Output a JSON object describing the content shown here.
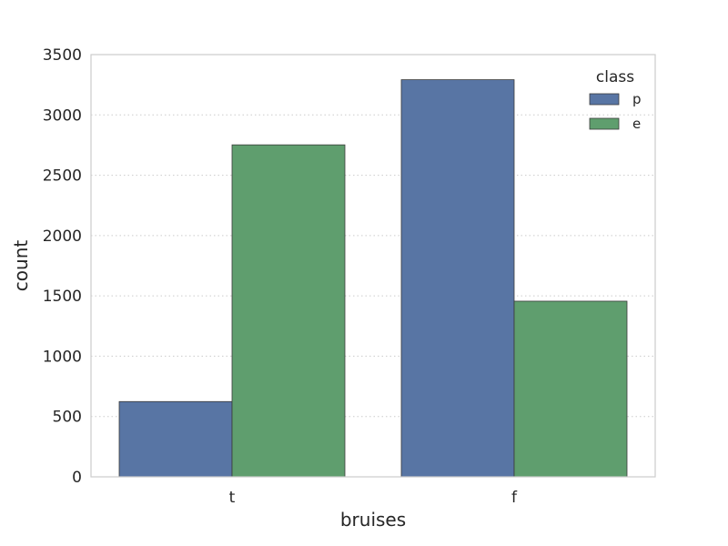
{
  "chart_data": {
    "type": "bar",
    "title": "",
    "xlabel": "bruises",
    "ylabel": "count",
    "categories": [
      "t",
      "f"
    ],
    "series": [
      {
        "name": "p",
        "color": "#5875a4",
        "values": [
          624,
          3292
        ]
      },
      {
        "name": "e",
        "color": "#5f9e6e",
        "values": [
          2752,
          1456
        ]
      }
    ],
    "ylim": [
      0,
      3500
    ],
    "yticks": [
      0,
      500,
      1000,
      1500,
      2000,
      2500,
      3000,
      3500
    ],
    "grid": true,
    "legend": {
      "title": "class",
      "placement": "top-right"
    }
  }
}
